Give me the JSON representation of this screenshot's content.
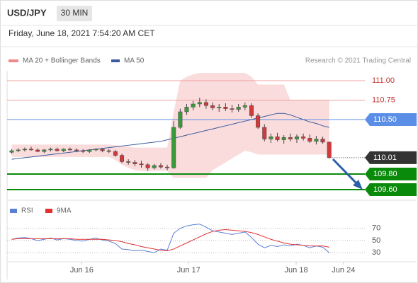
{
  "chart_data": {
    "type": "candlestick",
    "symbol": "USD/JPY",
    "timeframe": "30 MIN",
    "timestamp": "Friday, June 18, 2021 7:54:20 AM CET",
    "credit": "Research © 2021 Trading Central",
    "up_color": "#3a9a3a",
    "down_color": "#d03a3a",
    "xlim": [
      0,
      55
    ],
    "xticks": [
      {
        "value": 11.3,
        "label": "Jun 16"
      },
      {
        "value": 27.8,
        "label": "Jun 17"
      },
      {
        "value": 44.4,
        "label": "Jun 18"
      },
      {
        "value": 51.7,
        "label": "Jun 24"
      }
    ],
    "ylim": [
      109.464,
      111.127
    ],
    "candles": [
      [
        110.08,
        110.12,
        110.06,
        110.1
      ],
      [
        110.1,
        110.13,
        110.08,
        110.11
      ],
      [
        110.11,
        110.14,
        110.09,
        110.12
      ],
      [
        110.12,
        110.15,
        110.1,
        110.11
      ],
      [
        110.11,
        110.13,
        110.08,
        110.09
      ],
      [
        110.09,
        110.12,
        110.07,
        110.11
      ],
      [
        110.11,
        110.14,
        110.09,
        110.12
      ],
      [
        110.12,
        110.14,
        110.09,
        110.1
      ],
      [
        110.1,
        110.13,
        110.08,
        110.12
      ],
      [
        110.12,
        110.14,
        110.1,
        110.11
      ],
      [
        110.11,
        110.13,
        110.08,
        110.1
      ],
      [
        110.1,
        110.12,
        110.07,
        110.09
      ],
      [
        110.09,
        110.12,
        110.07,
        110.11
      ],
      [
        110.11,
        110.13,
        110.09,
        110.12
      ],
      [
        110.12,
        110.13,
        110.08,
        110.1
      ],
      [
        110.1,
        110.12,
        110.07,
        110.09
      ],
      [
        110.09,
        110.11,
        110.02,
        110.04
      ],
      [
        110.04,
        110.06,
        109.94,
        109.96
      ],
      [
        109.96,
        109.99,
        109.92,
        109.95
      ],
      [
        109.95,
        109.98,
        109.9,
        109.93
      ],
      [
        109.93,
        109.97,
        109.88,
        109.92
      ],
      [
        109.92,
        109.94,
        109.84,
        109.88
      ],
      [
        109.88,
        109.93,
        109.86,
        109.91
      ],
      [
        109.91,
        109.94,
        109.87,
        109.89
      ],
      [
        109.89,
        109.92,
        109.85,
        109.88
      ],
      [
        109.88,
        110.48,
        109.87,
        110.4
      ],
      [
        110.4,
        110.64,
        110.38,
        110.6
      ],
      [
        110.6,
        110.7,
        110.56,
        110.66
      ],
      [
        110.66,
        110.74,
        110.62,
        110.7
      ],
      [
        110.7,
        110.78,
        110.66,
        110.72
      ],
      [
        110.72,
        110.76,
        110.64,
        110.68
      ],
      [
        110.68,
        110.72,
        110.62,
        110.65
      ],
      [
        110.65,
        110.7,
        110.6,
        110.66
      ],
      [
        110.66,
        110.71,
        110.61,
        110.64
      ],
      [
        110.64,
        110.69,
        110.59,
        110.63
      ],
      [
        110.63,
        110.7,
        110.6,
        110.66
      ],
      [
        110.66,
        110.72,
        110.62,
        110.68
      ],
      [
        110.68,
        110.71,
        110.52,
        110.55
      ],
      [
        110.55,
        110.58,
        110.38,
        110.4
      ],
      [
        110.4,
        110.44,
        110.22,
        110.25
      ],
      [
        110.25,
        110.32,
        110.2,
        110.28
      ],
      [
        110.28,
        110.33,
        110.22,
        110.24
      ],
      [
        110.24,
        110.3,
        110.19,
        110.27
      ],
      [
        110.27,
        110.32,
        110.22,
        110.25
      ],
      [
        110.25,
        110.31,
        110.2,
        110.28
      ],
      [
        110.28,
        110.32,
        110.23,
        110.26
      ],
      [
        110.26,
        110.31,
        110.2,
        110.22
      ],
      [
        110.22,
        110.29,
        110.18,
        110.25
      ],
      [
        110.25,
        110.28,
        110.19,
        110.21
      ],
      [
        110.21,
        110.22,
        110.0,
        110.01
      ]
    ],
    "bands": {
      "name": "MA 20 + Bollinger Bands",
      "color": "#f08a8a",
      "upper": [
        110.18,
        110.18,
        110.18,
        110.18,
        110.18,
        110.18,
        110.18,
        110.18,
        110.18,
        110.18,
        110.18,
        110.18,
        110.18,
        110.18,
        110.18,
        110.18,
        110.17,
        110.16,
        110.15,
        110.14,
        110.14,
        110.14,
        110.14,
        110.14,
        110.14,
        110.6,
        111.0,
        111.05,
        111.08,
        111.1,
        111.1,
        111.1,
        111.1,
        111.1,
        111.1,
        111.1,
        111.1,
        111.05,
        110.95,
        110.95,
        110.95,
        110.95,
        110.95,
        110.75,
        110.75,
        110.75,
        110.75,
        110.75,
        110.75,
        110.75
      ],
      "lower": [
        110.02,
        110.02,
        110.02,
        110.02,
        110.02,
        110.02,
        110.02,
        110.02,
        110.02,
        110.02,
        110.02,
        110.02,
        110.02,
        110.02,
        110.02,
        110.02,
        109.98,
        109.92,
        109.88,
        109.85,
        109.84,
        109.84,
        109.84,
        109.84,
        109.84,
        109.75,
        109.75,
        109.75,
        109.75,
        109.75,
        109.75,
        109.85,
        109.9,
        109.95,
        110.0,
        110.05,
        110.1,
        110.08,
        110.05,
        110.05,
        110.05,
        110.05,
        110.05,
        110.05,
        110.05,
        110.05,
        110.05,
        110.05,
        110.05,
        110.05
      ]
    },
    "ma50": {
      "name": "MA 50",
      "color": "#3b5b9c",
      "values": [
        109.99,
        110.0,
        110.01,
        110.02,
        110.03,
        110.04,
        110.05,
        110.06,
        110.07,
        110.08,
        110.09,
        110.1,
        110.11,
        110.12,
        110.13,
        110.14,
        110.15,
        110.16,
        110.17,
        110.18,
        110.19,
        110.2,
        110.21,
        110.22,
        110.24,
        110.26,
        110.28,
        110.3,
        110.32,
        110.34,
        110.36,
        110.38,
        110.4,
        110.42,
        110.44,
        110.46,
        110.48,
        110.5,
        110.52,
        110.54,
        110.56,
        110.58,
        110.58,
        110.56,
        110.53,
        110.5,
        110.47,
        110.45,
        110.42,
        110.4
      ]
    },
    "levels": [
      {
        "value": 111,
        "label": "111.00",
        "color": "#f0a0a0",
        "label_box": false
      },
      {
        "value": 110.75,
        "label": "110.75",
        "color": "#f0a0a0",
        "label_box": false
      },
      {
        "value": 110.5,
        "label": "110.50",
        "color": "#5b8ee6",
        "label_box": true
      },
      {
        "value": 110.01,
        "label": "110.01",
        "color": "#333333",
        "label_box": true
      },
      {
        "value": 109.8,
        "label": "109.80",
        "color": "#0a8a0a",
        "label_box": true
      },
      {
        "value": 109.6,
        "label": "109.60",
        "color": "#0a8a0a",
        "label_box": true
      }
    ],
    "rsi": {
      "ylim": [
        15,
        100
      ],
      "yticks": [
        70,
        50,
        30
      ],
      "series": [
        {
          "name": "RSI",
          "color": "#5b7fd6",
          "values": [
            52,
            54,
            55,
            53,
            50,
            52,
            54,
            51,
            53,
            52,
            50,
            49,
            52,
            54,
            51,
            49,
            45,
            36,
            35,
            33,
            34,
            32,
            30,
            36,
            34,
            62,
            70,
            74,
            76,
            77,
            72,
            66,
            64,
            62,
            60,
            62,
            64,
            55,
            44,
            38,
            42,
            40,
            43,
            41,
            44,
            42,
            38,
            41,
            39,
            30
          ]
        },
        {
          "name": "9MA",
          "color": "#e03030",
          "values": [
            52,
            53,
            53,
            53,
            53,
            53,
            53,
            53,
            53,
            53,
            52,
            52,
            52,
            52,
            52,
            51,
            50,
            48,
            45,
            43,
            40,
            38,
            36,
            34,
            33,
            36,
            41,
            46,
            51,
            56,
            61,
            65,
            67,
            68,
            67,
            66,
            65,
            63,
            60,
            56,
            52,
            49,
            46,
            44,
            43,
            42,
            41,
            41,
            41,
            39
          ]
        }
      ]
    }
  }
}
